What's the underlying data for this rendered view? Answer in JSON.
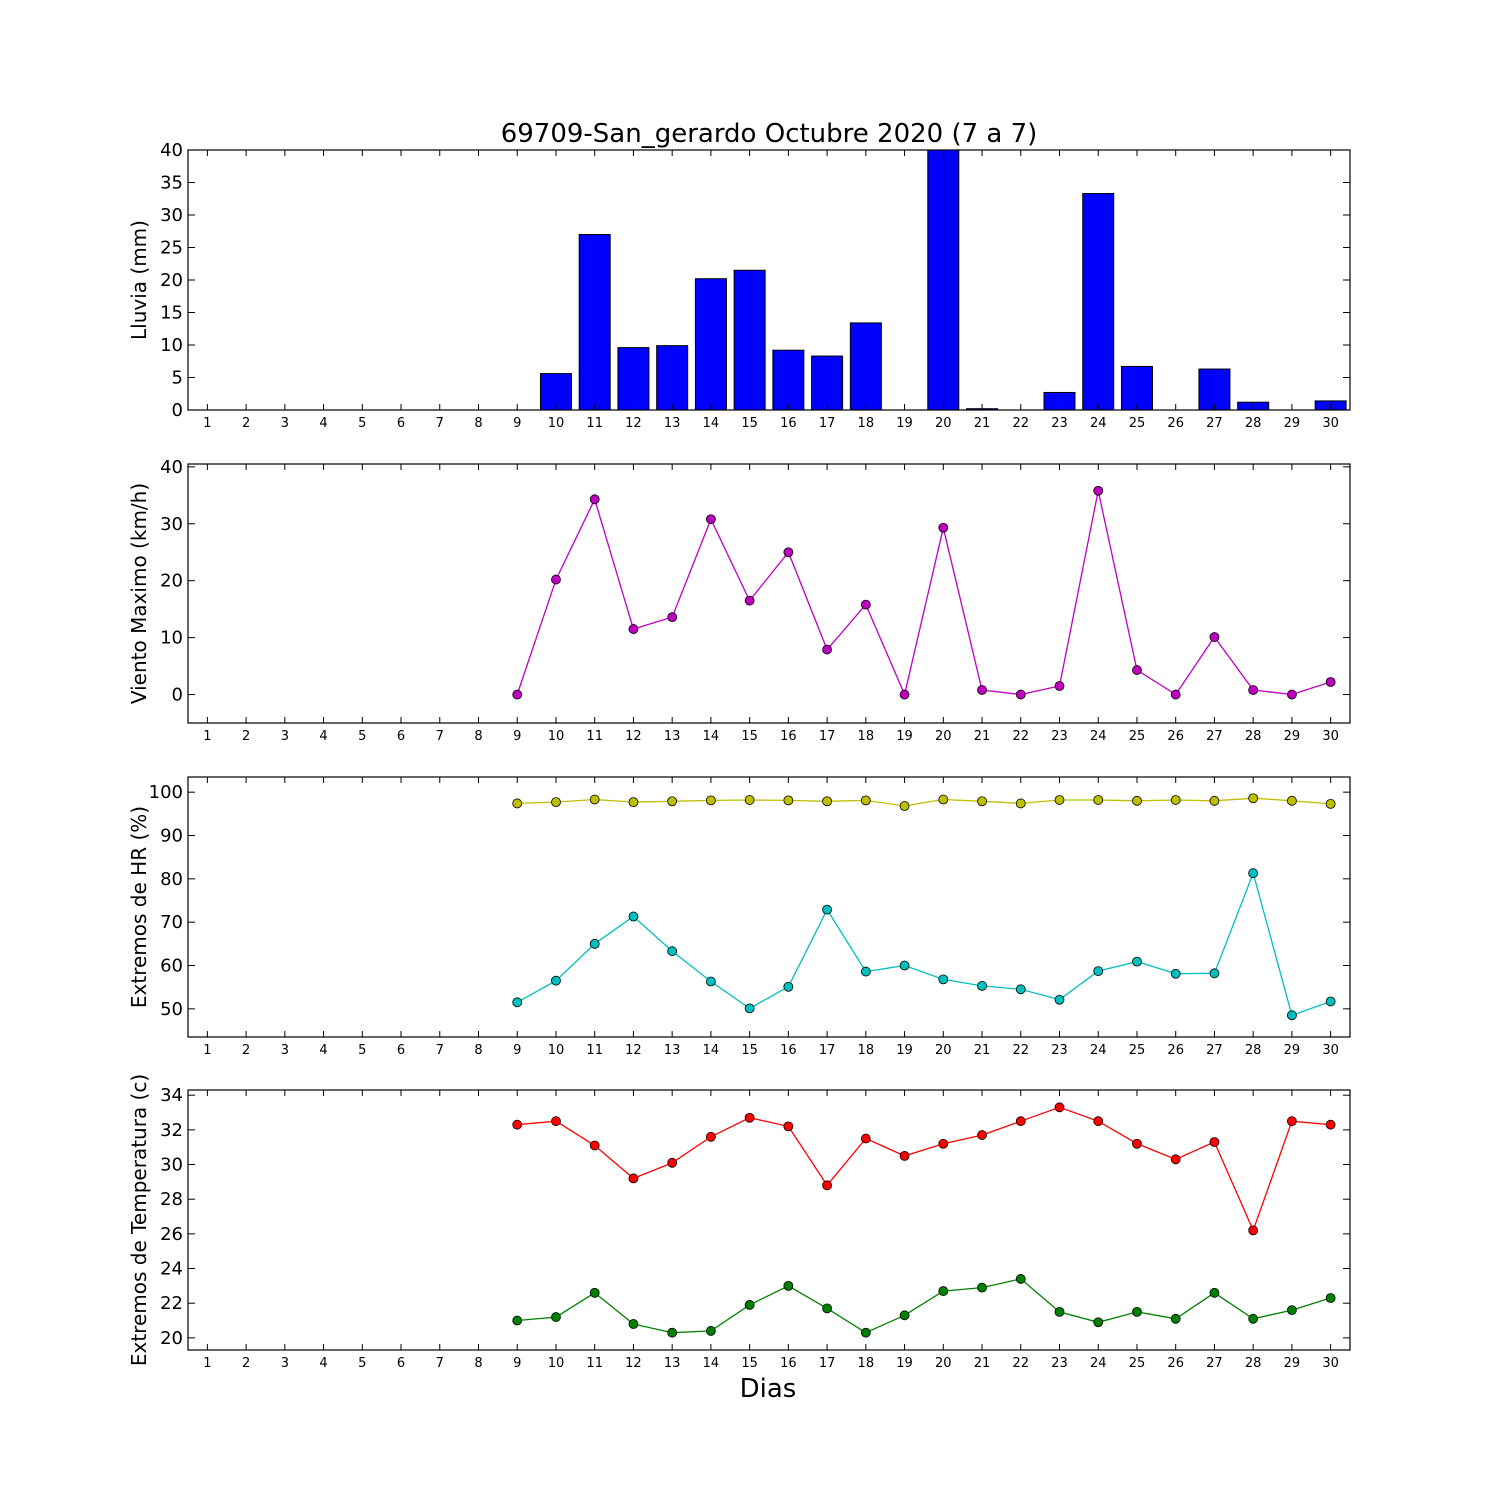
{
  "title": "69709-San_gerardo Octubre 2020  (7 a 7)",
  "xlabel": "Dias",
  "chart_data": [
    {
      "type": "bar",
      "ylabel": "Lluvia (mm)",
      "ylim": [
        0,
        40
      ],
      "yticks": [
        0,
        5,
        10,
        15,
        20,
        25,
        30,
        35,
        40
      ],
      "x": [
        1,
        2,
        3,
        4,
        5,
        6,
        7,
        8,
        9,
        10,
        11,
        12,
        13,
        14,
        15,
        16,
        17,
        18,
        19,
        20,
        21,
        22,
        23,
        24,
        25,
        26,
        27,
        28,
        29,
        30
      ],
      "series": [
        {
          "color": "#0000ff",
          "values": [
            null,
            null,
            null,
            null,
            null,
            null,
            null,
            null,
            0,
            5.6,
            27,
            9.6,
            9.9,
            20.2,
            21.5,
            9.2,
            8.3,
            13.4,
            0,
            40,
            0.2,
            0,
            2.7,
            33.3,
            6.7,
            0,
            6.3,
            1.2,
            0,
            1.4
          ]
        }
      ]
    },
    {
      "type": "line",
      "ylabel": "Viento Maximo (km/h)",
      "ylim": [
        -5,
        40.5
      ],
      "yticks": [
        0,
        10,
        20,
        30,
        40
      ],
      "x": [
        1,
        2,
        3,
        4,
        5,
        6,
        7,
        8,
        9,
        10,
        11,
        12,
        13,
        14,
        15,
        16,
        17,
        18,
        19,
        20,
        21,
        22,
        23,
        24,
        25,
        26,
        27,
        28,
        29,
        30
      ],
      "series": [
        {
          "color": "#bf00bf",
          "values": [
            null,
            null,
            null,
            null,
            null,
            null,
            null,
            null,
            0,
            20.2,
            34.3,
            11.5,
            13.6,
            30.8,
            16.5,
            25,
            7.9,
            15.8,
            0,
            29.3,
            0.8,
            0,
            1.5,
            35.8,
            4.3,
            0,
            10.1,
            0.8,
            0,
            2.2
          ]
        }
      ]
    },
    {
      "type": "line",
      "ylabel": "Extremos de HR (%)",
      "ylim": [
        43.5,
        103.5
      ],
      "yticks": [
        50,
        60,
        70,
        80,
        90,
        100
      ],
      "x": [
        1,
        2,
        3,
        4,
        5,
        6,
        7,
        8,
        9,
        10,
        11,
        12,
        13,
        14,
        15,
        16,
        17,
        18,
        19,
        20,
        21,
        22,
        23,
        24,
        25,
        26,
        27,
        28,
        29,
        30
      ],
      "series": [
        {
          "color": "#bfbf00",
          "values": [
            null,
            null,
            null,
            null,
            null,
            null,
            null,
            null,
            97.4,
            97.7,
            98.3,
            97.7,
            97.9,
            98.1,
            98.2,
            98.1,
            97.9,
            98.1,
            96.8,
            98.3,
            97.9,
            97.4,
            98.2,
            98.2,
            98,
            98.2,
            98,
            98.6,
            98,
            97.3
          ]
        },
        {
          "color": "#00bfbf",
          "values": [
            null,
            null,
            null,
            null,
            null,
            null,
            null,
            null,
            51.5,
            56.5,
            65,
            71.3,
            63.3,
            56.3,
            50.1,
            55.1,
            72.9,
            58.6,
            60,
            56.8,
            55.3,
            54.5,
            52.1,
            58.7,
            60.9,
            58.1,
            58.2,
            81.3,
            48.5,
            51.7
          ]
        }
      ]
    },
    {
      "type": "line",
      "ylabel": "Extremos de Temperatura (c)",
      "ylim": [
        19.3,
        34.3
      ],
      "yticks": [
        20,
        22,
        24,
        26,
        28,
        30,
        32,
        34
      ],
      "x": [
        1,
        2,
        3,
        4,
        5,
        6,
        7,
        8,
        9,
        10,
        11,
        12,
        13,
        14,
        15,
        16,
        17,
        18,
        19,
        20,
        21,
        22,
        23,
        24,
        25,
        26,
        27,
        28,
        29,
        30
      ],
      "series": [
        {
          "color": "#ff0000",
          "values": [
            null,
            null,
            null,
            null,
            null,
            null,
            null,
            null,
            32.3,
            32.5,
            31.1,
            29.2,
            30.1,
            31.6,
            32.7,
            32.2,
            28.8,
            31.5,
            30.5,
            31.2,
            31.7,
            32.5,
            33.3,
            32.5,
            31.2,
            30.3,
            31.3,
            26.2,
            32.5,
            32.3
          ]
        },
        {
          "color": "#008000",
          "values": [
            null,
            null,
            null,
            null,
            null,
            null,
            null,
            null,
            21,
            21.2,
            22.6,
            20.8,
            20.3,
            20.4,
            21.9,
            23,
            21.7,
            20.3,
            21.3,
            22.7,
            22.9,
            23.4,
            21.5,
            20.9,
            21.5,
            21.1,
            22.6,
            21.1,
            21.6,
            22.3
          ]
        }
      ]
    }
  ]
}
